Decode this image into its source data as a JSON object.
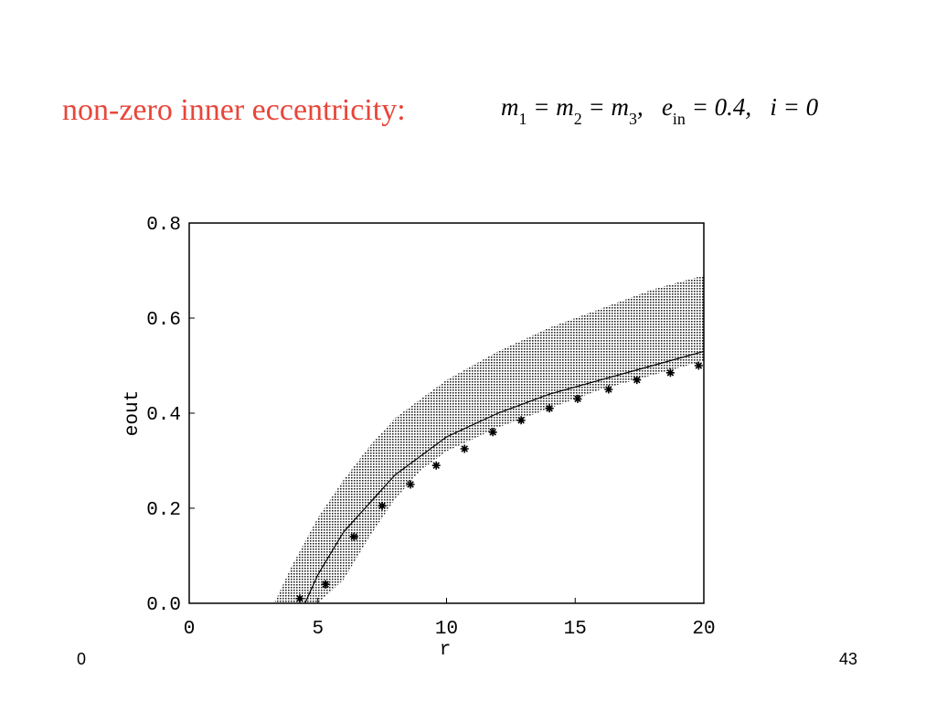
{
  "slide": {
    "title": "non-zero inner eccentricity:",
    "equation": [
      "m",
      "1",
      " = m",
      "2",
      " = m",
      "3",
      ",   e",
      "in",
      " = 0.4,   i = 0"
    ],
    "footer_left": "0",
    "page_number": "43"
  },
  "chart_data": {
    "type": "scatter",
    "xlabel": "r",
    "ylabel": "eout",
    "xlim": [
      0,
      20
    ],
    "ylim": [
      0,
      0.8
    ],
    "xticks": [
      0,
      5,
      10,
      15,
      20
    ],
    "yticks": [
      {
        "value": 0,
        "label": "0.0"
      },
      0.2,
      0.4,
      0.6,
      0.8
    ],
    "grid": false,
    "series": [
      {
        "type": "area",
        "color": "#000000",
        "x": [
          3.3,
          4,
          5,
          6,
          7,
          8,
          9,
          10,
          12,
          14,
          16,
          18,
          20
        ],
        "upper": [
          0,
          0.08,
          0.18,
          0.26,
          0.33,
          0.39,
          0.43,
          0.47,
          0.53,
          0.58,
          0.62,
          0.66,
          0.69
        ],
        "lower": [
          0,
          0,
          0,
          0.05,
          0.14,
          0.22,
          0.28,
          0.32,
          0.37,
          0.41,
          0.45,
          0.48,
          0.51
        ]
      },
      {
        "type": "line",
        "color": "#000000",
        "x": [
          4.5,
          5,
          6,
          7,
          8,
          9,
          10,
          12,
          14,
          16,
          18,
          20
        ],
        "values": [
          0,
          0.06,
          0.15,
          0.21,
          0.27,
          0.31,
          0.35,
          0.4,
          0.44,
          0.47,
          0.5,
          0.53
        ]
      },
      {
        "type": "scatter",
        "color": "#000000",
        "x": [
          4.3,
          5.3,
          6.4,
          7.5,
          8.6,
          9.6,
          10.7,
          11.8,
          12.9,
          14,
          15.1,
          16.3,
          17.4,
          18.7,
          19.8
        ],
        "values": [
          0.01,
          0.04,
          0.14,
          0.205,
          0.25,
          0.29,
          0.325,
          0.36,
          0.385,
          0.41,
          0.43,
          0.45,
          0.47,
          0.485,
          0.5
        ]
      }
    ]
  }
}
